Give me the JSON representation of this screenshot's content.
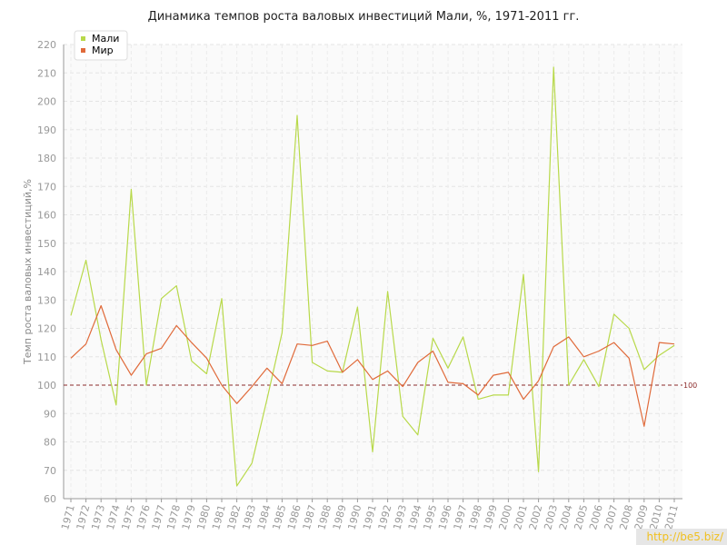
{
  "chart_data": {
    "type": "line",
    "title": "Динамика темпов роста валовых инвестиций Мали, %, 1971-2011 гг.",
    "ylabel": "Темп роста валовых инвестиций,%",
    "xlabel": "",
    "ylim": [
      60,
      220
    ],
    "yticks": [
      60,
      70,
      80,
      90,
      100,
      110,
      120,
      130,
      140,
      150,
      160,
      170,
      180,
      190,
      200,
      210,
      220
    ],
    "grid": true,
    "legend_position": "top-left",
    "x": [
      "1971",
      "1972",
      "1973",
      "1974",
      "1975",
      "1976",
      "1977",
      "1978",
      "1979",
      "1980",
      "1981",
      "1982",
      "1983",
      "1984",
      "1985",
      "1986",
      "1987",
      "1988",
      "1989",
      "1990",
      "1991",
      "1992",
      "1993",
      "1994",
      "1995",
      "1996",
      "1997",
      "1998",
      "1999",
      "2000",
      "2001",
      "2002",
      "2003",
      "2004",
      "2005",
      "2006",
      "2007",
      "2008",
      "2009",
      "2010",
      "2011"
    ],
    "series": [
      {
        "name": "Мали",
        "color": "#b8d94a",
        "values": [
          124.5,
          144,
          116,
          93,
          169,
          100,
          130.5,
          135,
          108.5,
          104,
          130.5,
          64.5,
          72.5,
          95,
          118.5,
          195,
          108,
          105,
          104.5,
          127.5,
          76.5,
          133,
          89,
          82.5,
          116.5,
          106,
          117,
          95,
          96.5,
          96.5,
          139,
          69.5,
          212,
          100,
          109,
          99.5,
          125,
          120,
          105.5,
          110.5,
          114
        ]
      },
      {
        "name": "Мир",
        "color": "#e06a3a",
        "values": [
          109.5,
          114.5,
          128,
          112.5,
          103.5,
          111,
          113,
          121,
          115,
          109.5,
          100,
          93.5,
          99.5,
          106,
          100.5,
          114.5,
          114,
          115.5,
          104.5,
          109,
          102,
          105,
          99.5,
          108,
          112,
          101,
          100.5,
          96.5,
          103.5,
          104.5,
          95,
          101.5,
          113.5,
          117,
          110,
          112,
          115,
          109.5,
          85.5,
          115,
          114.5
        ]
      }
    ],
    "reference_line": {
      "value": 100,
      "label": "100",
      "color": "#8b2a2a"
    }
  },
  "watermark": "http://be5.biz/"
}
